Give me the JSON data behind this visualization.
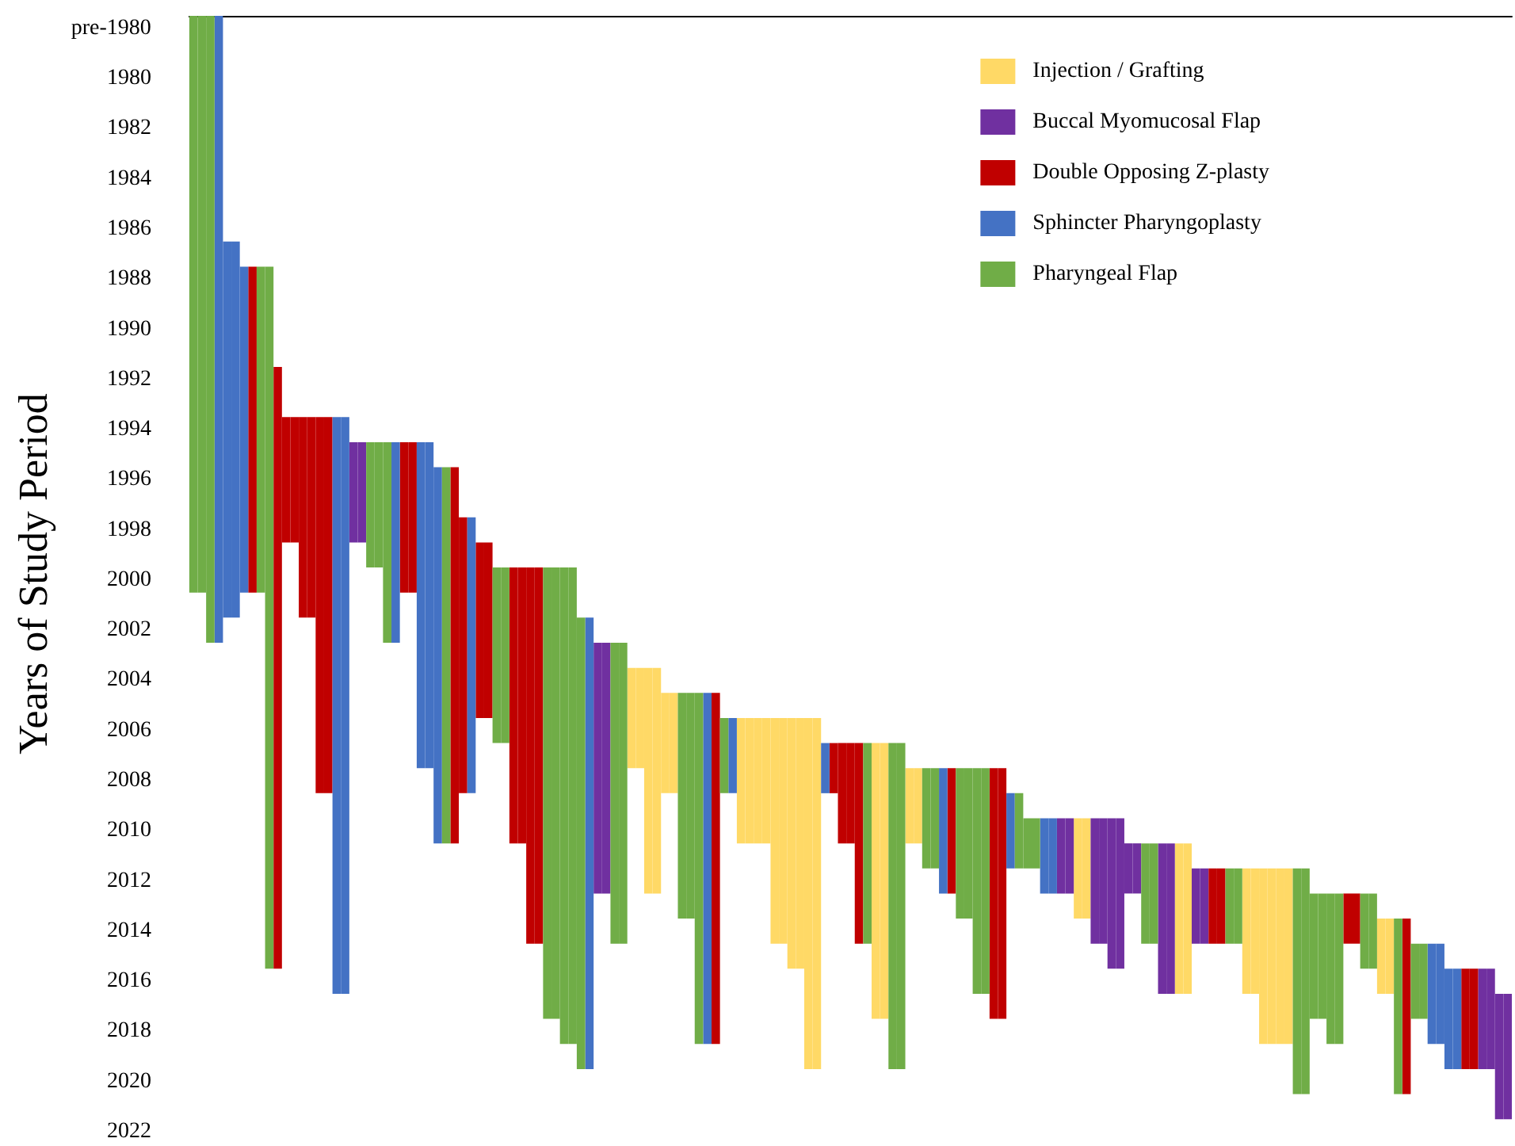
{
  "chart_data": {
    "type": "bar",
    "ylabel": "Years of Study Period",
    "categories": [
      null,
      null,
      null,
      null,
      null,
      null,
      null,
      null,
      null,
      null,
      null,
      null,
      null,
      null,
      null,
      null,
      null,
      null,
      null,
      null,
      null,
      null,
      null,
      null,
      null,
      null,
      null,
      null,
      null,
      null,
      null,
      null,
      null,
      null,
      null,
      null,
      null,
      null,
      null,
      null,
      null,
      null,
      null,
      null,
      null,
      null,
      null,
      null,
      null,
      null,
      null,
      null,
      null,
      null,
      null,
      null,
      null,
      null,
      null,
      null,
      null,
      null,
      null,
      null,
      null,
      null,
      null,
      null,
      null,
      null,
      null,
      null,
      null,
      null,
      null,
      null,
      null,
      null,
      null,
      null,
      null,
      null,
      null,
      null,
      null,
      null,
      null,
      null,
      null,
      null,
      null,
      null,
      null,
      null,
      null,
      null,
      null,
      null,
      null,
      null,
      null,
      null,
      null,
      null,
      null,
      null,
      null,
      null,
      null,
      null,
      null,
      null,
      null,
      null,
      null,
      null,
      null,
      null,
      null,
      null,
      null,
      null,
      null,
      null,
      null,
      null,
      null,
      null,
      null,
      null,
      null,
      null,
      null,
      null,
      null,
      null,
      null,
      null,
      null,
      null,
      null,
      null,
      null,
      null,
      null,
      null,
      null,
      null,
      null,
      null,
      null,
      null,
      null,
      null,
      null,
      null,
      null
    ],
    "series": [
      {
        "name": "Injection / Grafting",
        "color": "#ffd966",
        "values": [
          null,
          null,
          null,
          null,
          null,
          null,
          null,
          null,
          null,
          null,
          null,
          null,
          null,
          null,
          null,
          null,
          null,
          null,
          null,
          null,
          null,
          null,
          null,
          null,
          null,
          null,
          null,
          null,
          null,
          null,
          null,
          null,
          null,
          null,
          null,
          null,
          null,
          null,
          null,
          null,
          null,
          null,
          null,
          null,
          null,
          null,
          null,
          null,
          null,
          null,
          null,
          null,
          4,
          4,
          9,
          9,
          4,
          4,
          null,
          null,
          null,
          null,
          null,
          null,
          null,
          5,
          5,
          5,
          5,
          9,
          9,
          10,
          10,
          14,
          14,
          null,
          null,
          null,
          null,
          null,
          null,
          11,
          11,
          null,
          null,
          3,
          3,
          null,
          null,
          null,
          null,
          null,
          null,
          null,
          null,
          null,
          null,
          null,
          null,
          null,
          null,
          null,
          null,
          null,
          null,
          4,
          4,
          null,
          null,
          null,
          null,
          null,
          null,
          null,
          null,
          null,
          null,
          6,
          6,
          null,
          null,
          null,
          null,
          null,
          null,
          5,
          5,
          7,
          7,
          7,
          7,
          null,
          null,
          null,
          null,
          null,
          null,
          null,
          null,
          null,
          null,
          3,
          3,
          null,
          null,
          null,
          null,
          null,
          null,
          null,
          null,
          null,
          null,
          null,
          null,
          null,
          null
        ],
        "base": [
          null,
          null,
          null,
          null,
          null,
          null,
          null,
          null,
          null,
          null,
          null,
          null,
          null,
          null,
          null,
          null,
          null,
          null,
          null,
          null,
          null,
          null,
          null,
          null,
          null,
          null,
          null,
          null,
          null,
          null,
          null,
          null,
          null,
          null,
          null,
          null,
          null,
          null,
          null,
          null,
          null,
          null,
          null,
          null,
          null,
          null,
          null,
          null,
          null,
          null,
          null,
          null,
          2003.5,
          2003.5,
          2003.5,
          2003.5,
          2004.5,
          2004.5,
          null,
          null,
          null,
          null,
          null,
          null,
          null,
          2005.5,
          2005.5,
          2005.5,
          2005.5,
          2005.5,
          2005.5,
          2005.5,
          2005.5,
          2005.5,
          2005.5,
          null,
          null,
          null,
          null,
          null,
          null,
          2006.5,
          2006.5,
          null,
          null,
          2007.5,
          2007.5,
          null,
          null,
          null,
          null,
          null,
          null,
          null,
          null,
          null,
          null,
          null,
          null,
          null,
          null,
          null,
          null,
          null,
          null,
          2009.5,
          2009.5,
          null,
          null,
          null,
          null,
          null,
          null,
          null,
          null,
          null,
          null,
          2010.5,
          2010.5,
          null,
          null,
          null,
          null,
          null,
          null,
          2011.5,
          2011.5,
          2011.5,
          2011.5,
          2011.5,
          2011.5,
          null,
          null,
          null,
          null,
          null,
          null,
          null,
          null,
          null,
          null,
          2013.5,
          2013.5,
          null,
          null,
          null,
          null,
          null,
          null,
          null,
          null,
          null,
          null,
          null,
          null,
          null,
          null
        ]
      },
      {
        "name": "Buccal Myomucosal Flap",
        "color": "#7030a0",
        "values": [
          null,
          null,
          null,
          null,
          null,
          null,
          null,
          null,
          null,
          null,
          null,
          null,
          null,
          null,
          null,
          null,
          null,
          null,
          null,
          4,
          4,
          null,
          null,
          null,
          null,
          null,
          null,
          null,
          null,
          null,
          null,
          null,
          null,
          null,
          null,
          null,
          null,
          null,
          null,
          null,
          null,
          null,
          null,
          null,
          null,
          null,
          null,
          null,
          10,
          10,
          null,
          null,
          null,
          null,
          null,
          null,
          null,
          null,
          null,
          null,
          null,
          null,
          null,
          null,
          null,
          null,
          null,
          null,
          null,
          null,
          null,
          null,
          null,
          null,
          null,
          null,
          null,
          null,
          null,
          null,
          null,
          null,
          null,
          null,
          null,
          null,
          null,
          null,
          null,
          null,
          null,
          null,
          null,
          null,
          null,
          null,
          null,
          null,
          null,
          null,
          null,
          null,
          null,
          3,
          3,
          null,
          null,
          5,
          5,
          6,
          6,
          2,
          2,
          null,
          null,
          6,
          6,
          null,
          null,
          3,
          3,
          null,
          null,
          null,
          null,
          null,
          null,
          null,
          null,
          null,
          null,
          null,
          null,
          null,
          null,
          null,
          null,
          null,
          null,
          null,
          null,
          null,
          null,
          null,
          null,
          null,
          null,
          null,
          null,
          null,
          null,
          null,
          null,
          4,
          4,
          5,
          5
        ],
        "base": [
          null,
          null,
          null,
          null,
          null,
          null,
          null,
          null,
          null,
          null,
          null,
          null,
          null,
          null,
          null,
          null,
          null,
          null,
          null,
          1994.5,
          1994.5,
          null,
          null,
          null,
          null,
          null,
          null,
          null,
          null,
          null,
          null,
          null,
          null,
          null,
          null,
          null,
          null,
          null,
          null,
          null,
          null,
          null,
          null,
          null,
          null,
          null,
          null,
          null,
          2002.5,
          2002.5,
          null,
          null,
          null,
          null,
          null,
          null,
          null,
          null,
          null,
          null,
          null,
          null,
          null,
          null,
          null,
          null,
          null,
          null,
          null,
          null,
          null,
          null,
          null,
          null,
          null,
          null,
          null,
          null,
          null,
          null,
          null,
          null,
          null,
          null,
          null,
          null,
          null,
          null,
          null,
          null,
          null,
          null,
          null,
          null,
          null,
          null,
          null,
          null,
          null,
          null,
          null,
          null,
          null,
          2009.5,
          2009.5,
          null,
          null,
          2009.5,
          2009.5,
          2009.5,
          2009.5,
          2010.5,
          2010.5,
          null,
          null,
          2010.5,
          2010.5,
          null,
          null,
          2011.5,
          2011.5,
          null,
          null,
          null,
          null,
          null,
          null,
          null,
          null,
          null,
          null,
          null,
          null,
          null,
          null,
          null,
          null,
          null,
          null,
          null,
          null,
          null,
          null,
          null,
          null,
          null,
          null,
          null,
          null,
          null,
          null,
          null,
          null,
          2015.5,
          2015.5,
          2016.5,
          2016.5
        ]
      },
      {
        "name": "Double Opposing Z-plasty",
        "color": "#c00000",
        "values": [
          null,
          null,
          null,
          null,
          null,
          null,
          null,
          13,
          null,
          null,
          24,
          5,
          5,
          8,
          8,
          15,
          15,
          null,
          null,
          null,
          null,
          null,
          null,
          null,
          null,
          6,
          6,
          null,
          null,
          null,
          null,
          15,
          11,
          null,
          7,
          7,
          null,
          null,
          11,
          11,
          15,
          15,
          null,
          null,
          null,
          null,
          null,
          null,
          null,
          null,
          null,
          null,
          null,
          null,
          null,
          null,
          null,
          null,
          null,
          null,
          null,
          null,
          14,
          null,
          null,
          null,
          null,
          null,
          null,
          null,
          null,
          null,
          null,
          null,
          null,
          null,
          2,
          4,
          4,
          8,
          null,
          null,
          null,
          null,
          null,
          null,
          null,
          null,
          null,
          null,
          5,
          null,
          null,
          null,
          null,
          10,
          10,
          null,
          null,
          null,
          null,
          null,
          null,
          null,
          null,
          null,
          null,
          null,
          null,
          null,
          null,
          null,
          null,
          null,
          null,
          null,
          null,
          null,
          null,
          null,
          null,
          3,
          3,
          null,
          null,
          null,
          null,
          null,
          null,
          null,
          null,
          null,
          null,
          null,
          null,
          null,
          null,
          2,
          2,
          null,
          null,
          null,
          null,
          null,
          7,
          null,
          null,
          null,
          null,
          null,
          null,
          4,
          4,
          null,
          null,
          null,
          null
        ],
        "base": [
          null,
          null,
          null,
          null,
          null,
          null,
          null,
          1987.5,
          null,
          null,
          1991.5,
          1993.5,
          1993.5,
          1993.5,
          1993.5,
          1993.5,
          1993.5,
          null,
          null,
          null,
          null,
          null,
          null,
          null,
          null,
          1994.5,
          1994.5,
          null,
          null,
          null,
          null,
          1995.5,
          1997.5,
          null,
          1998.5,
          1998.5,
          null,
          null,
          1999.5,
          1999.5,
          1999.5,
          1999.5,
          null,
          null,
          null,
          null,
          null,
          null,
          null,
          null,
          null,
          null,
          null,
          null,
          null,
          null,
          null,
          null,
          null,
          null,
          null,
          null,
          2004.5,
          null,
          null,
          null,
          null,
          null,
          null,
          null,
          null,
          null,
          null,
          null,
          null,
          null,
          2006.5,
          2006.5,
          2006.5,
          2006.5,
          null,
          null,
          null,
          null,
          null,
          null,
          null,
          null,
          null,
          null,
          2007.5,
          null,
          null,
          null,
          null,
          2007.5,
          2007.5,
          null,
          null,
          null,
          null,
          null,
          null,
          null,
          null,
          null,
          null,
          null,
          null,
          null,
          null,
          null,
          null,
          null,
          null,
          null,
          null,
          null,
          null,
          null,
          null,
          2011.5,
          2011.5,
          null,
          null,
          null,
          null,
          null,
          null,
          null,
          null,
          null,
          null,
          null,
          null,
          null,
          null,
          2012.5,
          2012.5,
          null,
          null,
          null,
          null,
          null,
          2013.5,
          null,
          null,
          null,
          null,
          null,
          null,
          2015.5,
          2015.5,
          null,
          null,
          null,
          null
        ]
      },
      {
        "name": "Sphincter Pharyngoplasty",
        "color": "#4472c4",
        "values": [
          null,
          null,
          null,
          25,
          15,
          15,
          13,
          null,
          null,
          null,
          null,
          null,
          null,
          null,
          null,
          null,
          null,
          23,
          23,
          null,
          null,
          null,
          null,
          null,
          8,
          null,
          null,
          13,
          13,
          15,
          null,
          null,
          null,
          11,
          null,
          null,
          null,
          null,
          null,
          null,
          null,
          null,
          null,
          null,
          null,
          null,
          null,
          18,
          null,
          null,
          null,
          null,
          null,
          null,
          null,
          null,
          null,
          null,
          null,
          null,
          null,
          14,
          null,
          null,
          3,
          null,
          null,
          null,
          null,
          null,
          null,
          null,
          null,
          null,
          null,
          2,
          null,
          null,
          null,
          null,
          null,
          null,
          null,
          null,
          null,
          null,
          null,
          null,
          null,
          5,
          null,
          null,
          null,
          null,
          null,
          null,
          null,
          3,
          null,
          null,
          null,
          3,
          3,
          null,
          null,
          null,
          null,
          null,
          null,
          null,
          null,
          null,
          null,
          null,
          null,
          null,
          null,
          null,
          null,
          null,
          null,
          null,
          null,
          null,
          null,
          null,
          null,
          null,
          null,
          null,
          null,
          null,
          null,
          null,
          null,
          null,
          null,
          null,
          null,
          null,
          null,
          null,
          null,
          null,
          null,
          null,
          null,
          4,
          4,
          4,
          4,
          null,
          null,
          null,
          null,
          null,
          null
        ],
        "base": [
          null,
          null,
          null,
          1977.5,
          1986.5,
          1986.5,
          1987.5,
          null,
          null,
          null,
          null,
          null,
          null,
          null,
          null,
          null,
          null,
          1993.5,
          1993.5,
          null,
          null,
          null,
          null,
          null,
          1994.5,
          null,
          null,
          1994.5,
          1994.5,
          1995.5,
          null,
          null,
          null,
          1997.5,
          null,
          null,
          null,
          null,
          null,
          null,
          null,
          null,
          null,
          null,
          null,
          null,
          null,
          2001.5,
          null,
          null,
          null,
          null,
          null,
          null,
          null,
          null,
          null,
          null,
          null,
          null,
          null,
          2004.5,
          null,
          null,
          2005.5,
          null,
          null,
          null,
          null,
          null,
          null,
          null,
          null,
          null,
          null,
          2006.5,
          null,
          null,
          null,
          null,
          null,
          null,
          null,
          null,
          null,
          null,
          null,
          null,
          null,
          2007.5,
          null,
          null,
          null,
          null,
          null,
          null,
          null,
          2008.5,
          null,
          null,
          null,
          2009.5,
          2009.5,
          null,
          null,
          null,
          null,
          null,
          null,
          null,
          null,
          null,
          null,
          null,
          null,
          null,
          null,
          null,
          null,
          null,
          null,
          null,
          null,
          null,
          null,
          null,
          null,
          null,
          null,
          null,
          null,
          null,
          null,
          null,
          null,
          null,
          null,
          null,
          null,
          null,
          null,
          null,
          null,
          null,
          null,
          null,
          null,
          2014.5,
          2014.5,
          2015.5,
          2015.5,
          null,
          null,
          null,
          null,
          null,
          null
        ]
      },
      {
        "name": "Pharyngeal Flap",
        "color": "#70ad47",
        "values": [
          23,
          23,
          25,
          null,
          null,
          null,
          null,
          null,
          13,
          28,
          null,
          null,
          null,
          null,
          null,
          null,
          null,
          null,
          null,
          null,
          null,
          5,
          5,
          8,
          null,
          null,
          null,
          null,
          null,
          null,
          15,
          null,
          null,
          null,
          null,
          null,
          7,
          7,
          null,
          null,
          null,
          null,
          18,
          18,
          19,
          19,
          18,
          null,
          null,
          null,
          12,
          12,
          null,
          null,
          null,
          null,
          null,
          null,
          9,
          9,
          14,
          null,
          null,
          3,
          null,
          null,
          null,
          null,
          null,
          null,
          null,
          null,
          null,
          null,
          null,
          null,
          null,
          null,
          null,
          null,
          8,
          null,
          null,
          13,
          13,
          null,
          null,
          4,
          4,
          null,
          null,
          6,
          6,
          9,
          9,
          null,
          null,
          null,
          3,
          2,
          2,
          null,
          null,
          null,
          null,
          null,
          null,
          null,
          null,
          null,
          null,
          null,
          null,
          4,
          4,
          null,
          null,
          null,
          null,
          null,
          null,
          null,
          null,
          3,
          3,
          null,
          null,
          null,
          null,
          null,
          null,
          9,
          9,
          5,
          5,
          6,
          6,
          null,
          null,
          3,
          3,
          null,
          null,
          7,
          null,
          3,
          3,
          null,
          null,
          null,
          null,
          null,
          null,
          null,
          null,
          null,
          null
        ],
        "base": [
          1977.5,
          1977.5,
          1977.5,
          null,
          null,
          null,
          null,
          null,
          1987.5,
          1987.5,
          null,
          null,
          null,
          null,
          null,
          null,
          null,
          null,
          null,
          null,
          null,
          1994.5,
          1994.5,
          1994.5,
          null,
          null,
          null,
          null,
          null,
          null,
          1995.5,
          null,
          null,
          null,
          null,
          null,
          1999.5,
          1999.5,
          null,
          null,
          null,
          null,
          1999.5,
          1999.5,
          1999.5,
          1999.5,
          2001.5,
          null,
          null,
          null,
          2002.5,
          2002.5,
          null,
          null,
          null,
          null,
          null,
          null,
          2004.5,
          2004.5,
          2004.5,
          null,
          null,
          2005.5,
          null,
          null,
          null,
          null,
          null,
          null,
          null,
          null,
          null,
          null,
          null,
          null,
          null,
          null,
          null,
          null,
          2006.5,
          null,
          null,
          2006.5,
          2006.5,
          null,
          null,
          2007.5,
          2007.5,
          null,
          null,
          2007.5,
          2007.5,
          2007.5,
          2007.5,
          null,
          null,
          null,
          2008.5,
          2009.5,
          2009.5,
          null,
          null,
          null,
          null,
          null,
          null,
          null,
          null,
          null,
          null,
          null,
          null,
          2010.5,
          2010.5,
          null,
          null,
          null,
          null,
          null,
          null,
          null,
          null,
          2011.5,
          2011.5,
          null,
          null,
          null,
          null,
          null,
          null,
          2011.5,
          2011.5,
          2012.5,
          2012.5,
          2012.5,
          2012.5,
          null,
          null,
          2012.5,
          2012.5,
          null,
          null,
          2013.5,
          null,
          2014.5,
          2014.5,
          null,
          null,
          null,
          null,
          null,
          null,
          null,
          null,
          null,
          null
        ]
      }
    ],
    "ylim": [
      2022,
      1977.5
    ],
    "yticks": [
      {
        "value": 1978,
        "label": "pre-1980"
      },
      1980,
      1982,
      1984,
      1986,
      1988,
      1990,
      1992,
      1994,
      1996,
      1998,
      2000,
      2002,
      2004,
      2006,
      2008,
      2010,
      2012,
      2014,
      2016,
      2018,
      2020,
      2022
    ],
    "legend": "top right",
    "tick_labels": "y"
  }
}
